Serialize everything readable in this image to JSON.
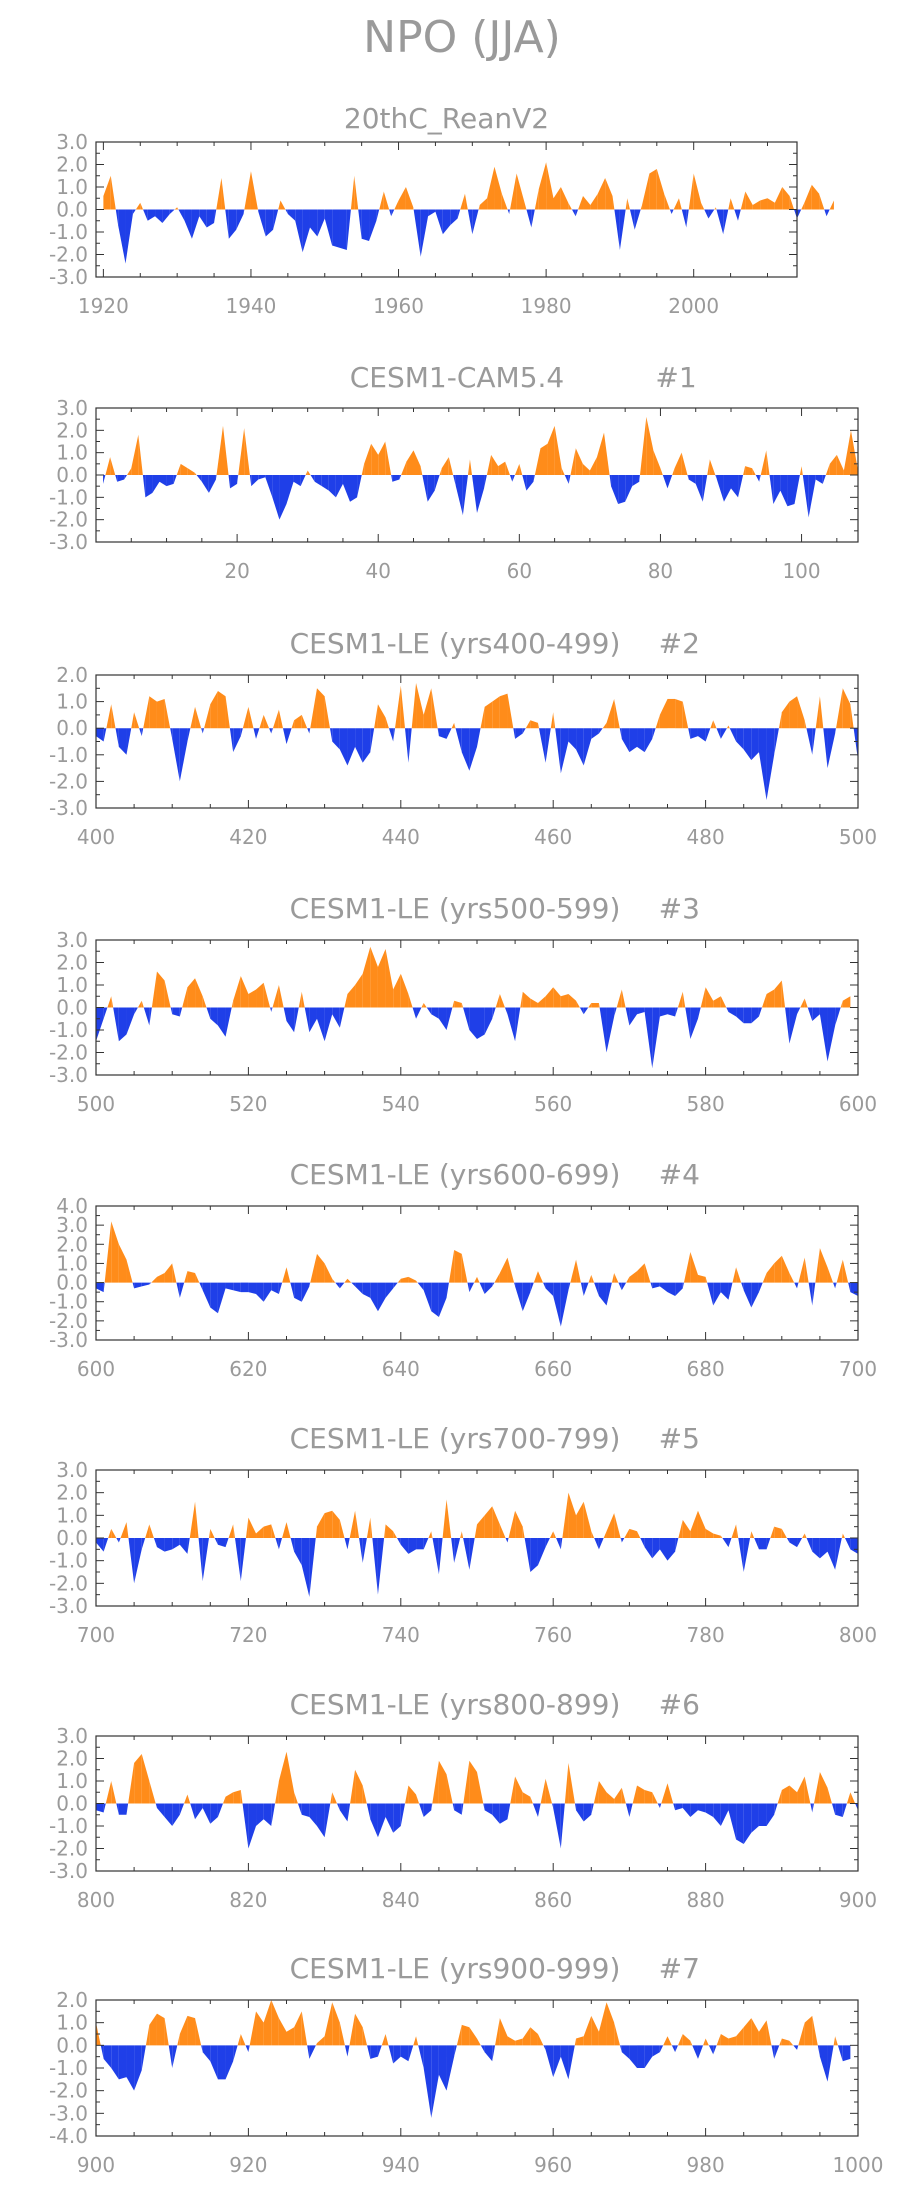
{
  "title": "NPO (JJA)",
  "colors": {
    "positive": "#FF8C1A",
    "negative": "#1F3FE8",
    "axis": "#333333",
    "text": "#9a9a9a"
  },
  "chart_data": [
    {
      "type": "area",
      "title": "20thC_ReanV2",
      "xlim": [
        1919,
        2014
      ],
      "ylim": [
        -3.0,
        3.0
      ],
      "yticks": [
        "3.0",
        "2.0",
        "1.0",
        "0.0",
        "-1.0",
        "-2.0",
        "-3.0"
      ],
      "yticks_values": [
        3,
        2,
        1,
        0,
        -1,
        -2,
        -3
      ],
      "xticks": [
        "1920",
        "1940",
        "1960",
        "1980",
        "2000"
      ],
      "xticks_values": [
        1920,
        1940,
        1960,
        1980,
        2000
      ],
      "x_start": 1920,
      "values": [
        0.6,
        1.5,
        -0.7,
        -2.4,
        -0.2,
        0.3,
        -0.5,
        -0.3,
        -0.6,
        -0.2,
        0.1,
        -0.5,
        -1.3,
        -0.3,
        -0.8,
        -0.6,
        1.4,
        -1.3,
        -0.9,
        -0.2,
        1.7,
        -0.1,
        -1.2,
        -0.9,
        0.4,
        -0.2,
        -0.5,
        -1.9,
        -0.8,
        -1.2,
        -0.4,
        -1.6,
        -1.7,
        -1.8,
        1.5,
        -1.3,
        -1.4,
        -0.5,
        0.8,
        -0.3,
        0.4,
        1.0,
        0.1,
        -2.1,
        -0.3,
        -0.1,
        -1.1,
        -0.7,
        -0.4,
        0.7,
        -1.1,
        0.2,
        0.5,
        1.9,
        0.7,
        -0.2,
        1.6,
        0.4,
        -0.8,
        0.9,
        2.1,
        0.5,
        1.0,
        0.3,
        -0.3,
        0.6,
        0.2,
        0.7,
        1.4,
        0.6,
        -1.8,
        0.5,
        -0.9,
        0.2,
        1.6,
        1.8,
        0.7,
        -0.2,
        0.5,
        -0.8,
        1.6,
        0.3,
        -0.4,
        0.1,
        -1.1,
        0.5,
        -0.5,
        0.8,
        0.2,
        0.4,
        0.5,
        0.3,
        1.0,
        0.6,
        -0.4,
        0.3,
        1.1,
        0.7,
        -0.3,
        0.4
      ]
    },
    {
      "type": "area",
      "title": "CESM1-CAM5.4",
      "tag": "#1",
      "xlim": [
        0,
        108
      ],
      "ylim": [
        -3.0,
        3.0
      ],
      "yticks": [
        "3.0",
        "2.0",
        "1.0",
        "0.0",
        "-1.0",
        "-2.0",
        "-3.0"
      ],
      "yticks_values": [
        3,
        2,
        1,
        0,
        -1,
        -2,
        -3
      ],
      "xticks": [
        "20",
        "40",
        "60",
        "80",
        "100"
      ],
      "xticks_values": [
        20,
        40,
        60,
        80,
        100
      ],
      "x_start": 1,
      "values": [
        -0.4,
        0.8,
        -0.3,
        -0.2,
        0.3,
        1.8,
        -1.0,
        -0.8,
        -0.3,
        -0.5,
        -0.4,
        0.5,
        0.3,
        0.1,
        -0.3,
        -0.8,
        -0.2,
        2.2,
        -0.6,
        -0.4,
        2.1,
        -0.5,
        -0.2,
        -0.1,
        -1.0,
        -2.0,
        -1.3,
        -0.3,
        -0.5,
        0.2,
        -0.3,
        -0.5,
        -0.7,
        -1.0,
        -0.4,
        -1.2,
        -1.0,
        0.5,
        1.4,
        0.9,
        1.5,
        -0.3,
        -0.2,
        0.6,
        1.1,
        0.4,
        -1.2,
        -0.7,
        0.3,
        0.8,
        -0.5,
        -1.8,
        0.7,
        -1.7,
        -0.6,
        0.9,
        0.4,
        0.6,
        -0.3,
        0.5,
        -0.7,
        -0.3,
        1.2,
        1.4,
        2.2,
        0.3,
        -0.4,
        1.2,
        0.5,
        0.2,
        0.8,
        1.9,
        -0.5,
        -1.3,
        -1.2,
        -0.5,
        -0.3,
        2.6,
        1.1,
        0.3,
        -0.6,
        0.3,
        1.0,
        -0.2,
        -0.4,
        -1.2,
        0.7,
        -0.2,
        -1.2,
        -0.6,
        -1.0,
        0.4,
        0.3,
        -0.3,
        1.1,
        -1.3,
        -0.7,
        -1.4,
        -1.3,
        0.4,
        -1.9,
        -0.2,
        -0.4,
        0.5,
        0.9,
        0.2,
        2.0,
        0.2
      ]
    },
    {
      "type": "area",
      "title": "CESM1-LE (yrs400-499)",
      "tag": "#2",
      "xlim": [
        400,
        500
      ],
      "ylim": [
        -3.0,
        2.0
      ],
      "yticks": [
        "2.0",
        "1.0",
        "0.0",
        "-1.0",
        "-2.0",
        "-3.0"
      ],
      "yticks_values": [
        2,
        1,
        0,
        -1,
        -2,
        -3
      ],
      "xticks": [
        "400",
        "420",
        "440",
        "460",
        "480",
        "500"
      ],
      "xticks_values": [
        400,
        420,
        440,
        460,
        480,
        500
      ],
      "x_start": 400,
      "values": [
        -0.3,
        -0.5,
        0.9,
        -0.7,
        -1.0,
        0.6,
        -0.3,
        1.2,
        1.0,
        1.1,
        -0.4,
        -2.0,
        -0.5,
        0.8,
        -0.2,
        0.9,
        1.4,
        1.2,
        -0.9,
        -0.3,
        0.8,
        -0.4,
        0.5,
        -0.2,
        0.7,
        -0.6,
        0.3,
        0.5,
        -0.2,
        1.5,
        1.2,
        -0.5,
        -0.8,
        -1.4,
        -0.7,
        -1.3,
        -0.9,
        0.9,
        0.4,
        -0.5,
        1.6,
        -1.3,
        1.7,
        0.5,
        1.5,
        -0.3,
        -0.4,
        0.2,
        -0.9,
        -1.6,
        -0.7,
        0.8,
        1.0,
        1.2,
        1.3,
        -0.4,
        -0.2,
        0.3,
        0.2,
        -1.3,
        0.6,
        -1.7,
        -0.5,
        -0.8,
        -1.4,
        -0.4,
        -0.2,
        0.2,
        1.1,
        -0.4,
        -0.9,
        -0.7,
        -0.9,
        -0.4,
        0.5,
        1.1,
        1.1,
        1.0,
        -0.4,
        -0.3,
        -0.5,
        0.3,
        -0.4,
        0.1,
        -0.5,
        -0.8,
        -1.2,
        -0.9,
        -2.7,
        -1.0,
        0.6,
        1.0,
        1.2,
        0.3,
        -1.0,
        1.2,
        -1.5,
        -0.2,
        1.5,
        0.9,
        -1.2
      ]
    },
    {
      "type": "area",
      "title": "CESM1-LE (yrs500-599)",
      "tag": "#3",
      "xlim": [
        500,
        600
      ],
      "ylim": [
        -3.0,
        3.0
      ],
      "yticks": [
        "3.0",
        "2.0",
        "1.0",
        "0.0",
        "-1.0",
        "-2.0",
        "-3.0"
      ],
      "yticks_values": [
        3,
        2,
        1,
        0,
        -1,
        -2,
        -3
      ],
      "xticks": [
        "500",
        "520",
        "540",
        "560",
        "580",
        "600"
      ],
      "xticks_values": [
        500,
        520,
        540,
        560,
        580,
        600
      ],
      "x_start": 500,
      "values": [
        -1.5,
        -0.5,
        0.5,
        -1.5,
        -1.2,
        -0.3,
        0.3,
        -0.8,
        1.6,
        1.2,
        -0.3,
        -0.4,
        0.9,
        1.3,
        0.5,
        -0.5,
        -0.8,
        -1.3,
        0.3,
        1.4,
        0.6,
        0.8,
        1.1,
        -0.2,
        1.0,
        -0.6,
        -1.1,
        0.7,
        -1.1,
        -0.5,
        -1.5,
        -0.3,
        -0.9,
        0.6,
        1.0,
        1.5,
        2.7,
        1.8,
        2.6,
        0.8,
        1.5,
        0.6,
        -0.5,
        0.2,
        -0.3,
        -0.5,
        -1.0,
        0.3,
        0.2,
        -1.0,
        -1.4,
        -1.2,
        -0.5,
        0.6,
        -0.3,
        -1.5,
        0.7,
        0.4,
        0.2,
        0.5,
        0.9,
        0.5,
        0.6,
        0.3,
        -0.3,
        0.2,
        0.2,
        -2.0,
        -0.4,
        0.8,
        -0.8,
        -0.3,
        -0.2,
        -2.7,
        -0.4,
        -0.3,
        -0.4,
        0.7,
        -1.4,
        -0.5,
        0.9,
        0.3,
        0.5,
        -0.2,
        -0.4,
        -0.7,
        -0.7,
        -0.4,
        0.6,
        0.8,
        1.2,
        -1.6,
        -0.3,
        0.4,
        -0.6,
        -0.3,
        -2.4,
        -0.8,
        0.3,
        0.5
      ]
    },
    {
      "type": "area",
      "title": "CESM1-LE (yrs600-699)",
      "tag": "#4",
      "xlim": [
        600,
        700
      ],
      "ylim": [
        -3.0,
        4.0
      ],
      "yticks": [
        "4.0",
        "3.0",
        "2.0",
        "1.0",
        "0.0",
        "-1.0",
        "-2.0",
        "-3.0"
      ],
      "yticks_values": [
        4,
        3,
        2,
        1,
        0,
        -1,
        -2,
        -3
      ],
      "xticks": [
        "600",
        "620",
        "640",
        "660",
        "680",
        "700"
      ],
      "xticks_values": [
        600,
        620,
        640,
        660,
        680,
        700
      ],
      "x_start": 600,
      "values": [
        -0.3,
        -0.5,
        3.2,
        2.0,
        1.2,
        -0.3,
        -0.2,
        -0.1,
        0.3,
        0.5,
        1.0,
        -0.8,
        0.6,
        0.5,
        -0.4,
        -1.3,
        -1.6,
        -0.3,
        -0.4,
        -0.5,
        -0.5,
        -0.6,
        -1.0,
        -0.4,
        -0.6,
        0.8,
        -0.8,
        -1.0,
        -0.2,
        1.5,
        1.0,
        0.2,
        -0.3,
        0.2,
        -0.2,
        -0.6,
        -0.8,
        -1.5,
        -0.8,
        -0.3,
        0.2,
        0.3,
        0.1,
        -0.4,
        -1.5,
        -1.8,
        -0.8,
        1.7,
        1.5,
        -0.5,
        0.3,
        -0.6,
        -0.2,
        0.5,
        1.3,
        -0.2,
        -1.5,
        -0.5,
        0.6,
        -0.3,
        -0.7,
        -2.3,
        -0.4,
        1.2,
        -0.7,
        0.4,
        -0.7,
        -1.2,
        0.5,
        -0.4,
        0.3,
        0.6,
        1.0,
        -0.3,
        -0.2,
        -0.5,
        -0.7,
        -0.3,
        1.6,
        0.4,
        0.3,
        -1.2,
        -0.5,
        -0.9,
        0.8,
        -0.4,
        -1.3,
        -0.5,
        0.5,
        1.0,
        1.4,
        0.5,
        -0.3,
        1.3,
        -1.2,
        1.8,
        0.8,
        -0.3,
        1.2,
        -0.5,
        -0.7
      ]
    },
    {
      "type": "area",
      "title": "CESM1-LE (yrs700-799)",
      "tag": "#5",
      "xlim": [
        700,
        800
      ],
      "ylim": [
        -3.0,
        3.0
      ],
      "yticks": [
        "3.0",
        "2.0",
        "1.0",
        "0.0",
        "-1.0",
        "-2.0",
        "-3.0"
      ],
      "yticks_values": [
        3,
        2,
        1,
        0,
        -1,
        -2,
        -3
      ],
      "xticks": [
        "700",
        "720",
        "740",
        "760",
        "780",
        "800"
      ],
      "xticks_values": [
        700,
        720,
        740,
        760,
        780,
        800
      ],
      "x_start": 700,
      "values": [
        -0.2,
        -0.6,
        0.4,
        -0.2,
        0.7,
        -2.0,
        -0.5,
        0.6,
        -0.4,
        -0.6,
        -0.5,
        -0.3,
        -0.7,
        1.6,
        -1.9,
        0.4,
        -0.3,
        -0.4,
        0.6,
        -1.9,
        0.9,
        0.2,
        0.5,
        0.6,
        -0.5,
        0.7,
        -0.6,
        -1.2,
        -2.6,
        0.5,
        1.1,
        1.2,
        0.8,
        -0.5,
        1.2,
        -1.1,
        0.9,
        -2.5,
        0.6,
        0.3,
        -0.3,
        -0.7,
        -0.5,
        -0.5,
        0.3,
        -1.6,
        1.7,
        -1.1,
        0.3,
        -1.4,
        0.6,
        1.0,
        1.4,
        0.6,
        -0.2,
        1.2,
        0.5,
        -1.5,
        -1.2,
        -0.4,
        0.3,
        -0.5,
        2.0,
        1.0,
        1.6,
        0.3,
        -0.5,
        0.3,
        1.1,
        -0.2,
        0.4,
        0.3,
        -0.4,
        -0.9,
        -0.5,
        -1.0,
        -0.6,
        0.8,
        0.3,
        1.2,
        0.4,
        0.2,
        0.1,
        -0.4,
        0.6,
        -1.5,
        0.3,
        -0.5,
        -0.5,
        0.5,
        0.4,
        -0.2,
        -0.4,
        0.2,
        -0.6,
        -0.9,
        -0.6,
        -1.4,
        0.2,
        -0.5,
        -0.7
      ]
    },
    {
      "type": "area",
      "title": "CESM1-LE (yrs800-899)",
      "tag": "#6",
      "xlim": [
        800,
        900
      ],
      "ylim": [
        -3.0,
        3.0
      ],
      "yticks": [
        "3.0",
        "2.0",
        "1.0",
        "0.0",
        "-1.0",
        "-2.0",
        "-3.0"
      ],
      "yticks_values": [
        3,
        2,
        1,
        0,
        -1,
        -2,
        -3
      ],
      "xticks": [
        "800",
        "820",
        "840",
        "860",
        "880",
        "900"
      ],
      "xticks_values": [
        800,
        820,
        840,
        860,
        880,
        900
      ],
      "x_start": 800,
      "values": [
        -0.3,
        -0.4,
        1.0,
        -0.5,
        -0.5,
        1.8,
        2.2,
        1.0,
        -0.2,
        -0.6,
        -1.0,
        -0.5,
        0.4,
        -0.7,
        -0.2,
        -0.9,
        -0.6,
        0.3,
        0.5,
        0.6,
        -2.0,
        -1.0,
        -0.7,
        -1.0,
        1.0,
        2.3,
        0.5,
        -0.5,
        -0.6,
        -1.0,
        -1.5,
        0.5,
        -0.3,
        -0.8,
        1.5,
        0.8,
        -0.7,
        -1.5,
        -0.6,
        -1.3,
        -1.0,
        0.8,
        0.4,
        -0.6,
        -0.3,
        1.9,
        1.3,
        -0.3,
        -0.5,
        1.9,
        1.4,
        -0.3,
        -0.5,
        -0.9,
        -0.7,
        1.2,
        0.5,
        0.3,
        -0.6,
        1.1,
        -0.2,
        -2.0,
        1.8,
        -0.3,
        -0.8,
        -0.5,
        1.0,
        0.5,
        0.2,
        0.7,
        -0.6,
        0.8,
        0.6,
        0.5,
        -0.2,
        0.9,
        -0.3,
        -0.2,
        -0.6,
        -0.3,
        -0.4,
        -0.6,
        -1.0,
        -0.3,
        -1.6,
        -1.8,
        -1.3,
        -1.0,
        -1.0,
        -0.5,
        0.6,
        0.8,
        0.5,
        1.2,
        -0.4,
        1.4,
        0.7,
        -0.5,
        -0.6,
        0.5,
        -0.3
      ]
    },
    {
      "type": "area",
      "title": "CESM1-LE (yrs900-999)",
      "tag": "#7",
      "xlim": [
        900,
        1000
      ],
      "ylim": [
        -4.0,
        2.0
      ],
      "yticks": [
        "2.0",
        "1.0",
        "0.0",
        "-1.0",
        "-2.0",
        "-3.0",
        "-4.0"
      ],
      "yticks_values": [
        2,
        1,
        0,
        -1,
        -2,
        -3,
        -4
      ],
      "xticks": [
        "900",
        "920",
        "940",
        "960",
        "980",
        "1000"
      ],
      "xticks_values": [
        900,
        920,
        940,
        960,
        980,
        1000
      ],
      "x_start": 900,
      "values": [
        1.0,
        -0.6,
        -1.0,
        -1.5,
        -1.4,
        -2.0,
        -1.1,
        0.9,
        1.4,
        1.2,
        -1.0,
        0.5,
        1.3,
        1.2,
        -0.3,
        -0.7,
        -1.5,
        -1.5,
        -0.7,
        0.5,
        -0.3,
        1.5,
        1.0,
        2.0,
        1.2,
        0.6,
        0.8,
        1.5,
        -0.6,
        0.1,
        0.4,
        1.9,
        1.0,
        -0.5,
        1.4,
        0.8,
        -0.6,
        -0.5,
        0.5,
        -0.8,
        -0.5,
        -0.7,
        0.4,
        -1.0,
        -3.2,
        -1.3,
        -2.0,
        -0.5,
        0.9,
        0.8,
        0.3,
        -0.3,
        -0.7,
        1.2,
        0.4,
        0.2,
        0.3,
        0.8,
        0.5,
        -0.2,
        -1.4,
        -0.5,
        -1.5,
        0.3,
        0.4,
        1.3,
        0.6,
        1.9,
        1.0,
        -0.3,
        -0.6,
        -1.0,
        -1.0,
        -0.5,
        -0.3,
        0.4,
        -0.3,
        0.5,
        0.2,
        -0.6,
        0.3,
        -0.4,
        0.5,
        0.3,
        0.4,
        0.8,
        1.2,
        0.6,
        1.1,
        -0.6,
        0.3,
        0.2,
        -0.2,
        1.0,
        1.3,
        -0.5,
        -1.6,
        0.4,
        -0.7,
        -0.6
      ]
    }
  ]
}
